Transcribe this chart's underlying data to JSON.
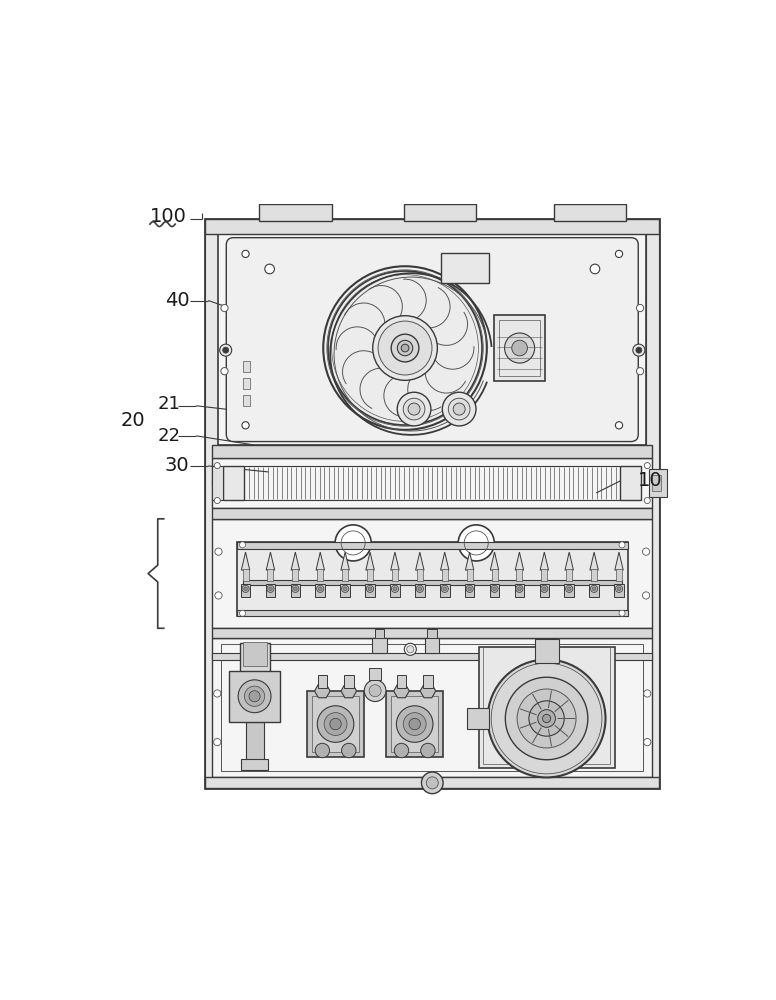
{
  "bg_color": "#ffffff",
  "lc": "#3a3a3a",
  "lc2": "#555555",
  "lg": "#d8d8d8",
  "mg": "#b0b0b0",
  "dg": "#888888",
  "figsize": [
    7.76,
    10.0
  ],
  "dpi": 100,
  "ox": 0.13,
  "oy": 0.015,
  "ow": 0.755,
  "oh": 0.965
}
